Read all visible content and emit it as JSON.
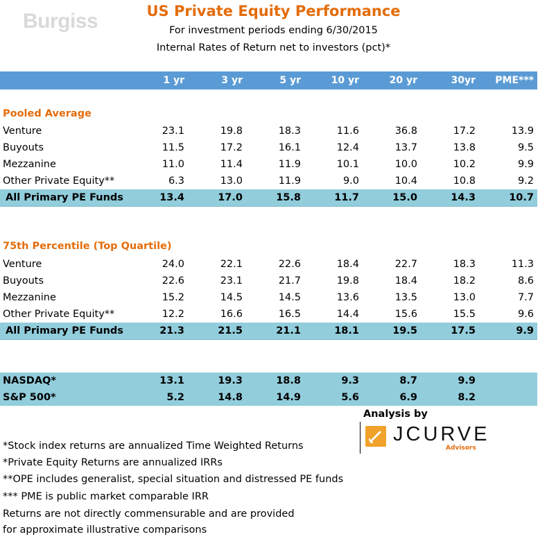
{
  "logo": {
    "text": "Burgiss"
  },
  "title": "US Private Equity Performance",
  "subtitle1": "For investment  periods ending 6/30/2015",
  "subtitle2": "Internal Rates of Return net to investors (pct)*",
  "columns": [
    "1 yr",
    "3 yr",
    "5 yr",
    "10 yr",
    "20 yr",
    "30yr",
    "PME***"
  ],
  "sections": [
    {
      "title": "Pooled Average",
      "rows": [
        {
          "label": "Venture",
          "values": [
            "23.1",
            "19.8",
            "18.3",
            "11.6",
            "36.8",
            "17.2",
            "13.9"
          ]
        },
        {
          "label": "Buyouts",
          "values": [
            "11.5",
            "17.2",
            "16.1",
            "12.4",
            "13.7",
            "13.8",
            "9.5"
          ]
        },
        {
          "label": "Mezzanine",
          "values": [
            "11.0",
            "11.4",
            "11.9",
            "10.1",
            "10.0",
            "10.2",
            "9.9"
          ]
        },
        {
          "label": "Other Private Equity**",
          "values": [
            "6.3",
            "13.0",
            "11.9",
            "9.0",
            "10.4",
            "10.8",
            "9.2"
          ]
        }
      ],
      "total": {
        "label": "All Primary PE Funds",
        "values": [
          "13.4",
          "17.0",
          "15.8",
          "11.7",
          "15.0",
          "14.3",
          "10.7"
        ]
      }
    },
    {
      "title": "75th Percentile (Top Quartile)",
      "rows": [
        {
          "label": "Venture",
          "values": [
            "24.0",
            "22.1",
            "22.6",
            "18.4",
            "22.7",
            "18.3",
            "11.3"
          ]
        },
        {
          "label": "Buyouts",
          "values": [
            "22.6",
            "23.1",
            "21.7",
            "19.8",
            "18.4",
            "18.2",
            "8.6"
          ]
        },
        {
          "label": "Mezzanine",
          "values": [
            "15.2",
            "14.5",
            "14.5",
            "13.6",
            "13.5",
            "13.0",
            "7.7"
          ]
        },
        {
          "label": "Other Private Equity**",
          "values": [
            "12.2",
            "16.6",
            "16.5",
            "14.4",
            "15.6",
            "15.5",
            "9.6"
          ]
        }
      ],
      "total": {
        "label": "All Primary PE Funds",
        "values": [
          "21.3",
          "21.5",
          "21.1",
          "18.1",
          "19.5",
          "17.5",
          "9.9"
        ]
      }
    }
  ],
  "indices": [
    {
      "label": "NASDAQ*",
      "values": [
        "13.1",
        "19.3",
        "18.8",
        "9.3",
        "8.7",
        "9.9",
        ""
      ]
    },
    {
      "label": "S&P 500*",
      "values": [
        "5.2",
        "14.8",
        "14.9",
        "5.6",
        "6.9",
        "8.2",
        ""
      ]
    }
  ],
  "analysis_by": "Analysis by",
  "jcurve": {
    "word": "JCURVE",
    "sub": "Advisors",
    "accent": "#f0a22a"
  },
  "footnotes": [
    "*Stock index  returns are annualized Time Weighted Returns",
    "*Private Equity Returns are annualized IRRs",
    "**OPE includes generalist, special situation and distressed PE funds",
    "*** PME is public market comparable IRR",
    "Returns are not directly commensurable and are provided",
    "for approximate illustrative comparisons"
  ],
  "colors": {
    "header_bg": "#5b9bd5",
    "total_bg": "#92cddc",
    "accent": "#e46c0a"
  }
}
